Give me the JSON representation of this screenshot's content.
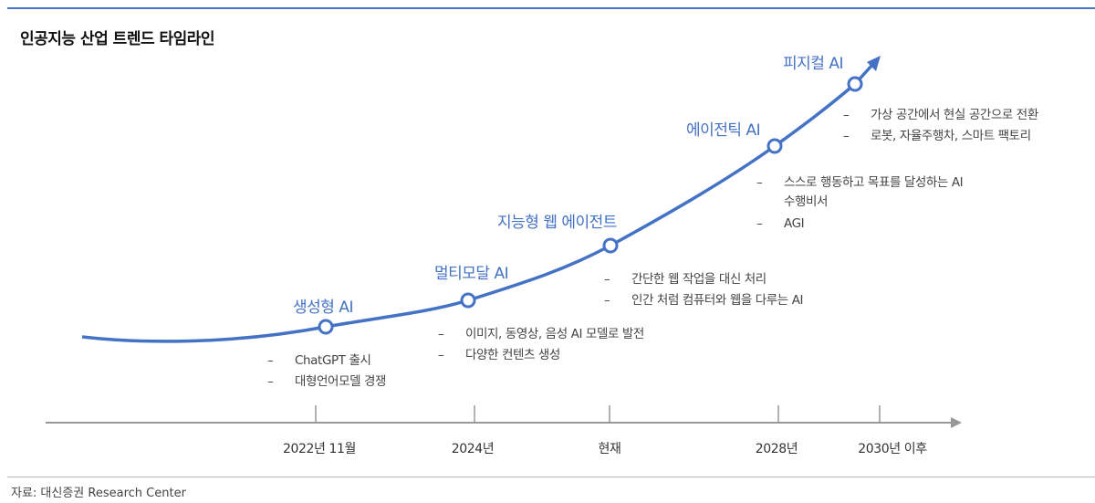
{
  "title": "인공지능 산업 트렌드 타임라인",
  "colors": {
    "accent": "#4472c4",
    "axis": "#999999"
  },
  "stages": [
    {
      "label": "생성형 AI",
      "bullets": [
        "ChatGPT 출시",
        "대형언어모델 경쟁"
      ]
    },
    {
      "label": "멀티모달 AI",
      "bullets": [
        "이미지, 동영상, 음성 AI 모델로 발전",
        "다양한 컨텐츠 생성"
      ]
    },
    {
      "label": "지능형 웹 에이전트",
      "bullets": [
        "간단한 웹 작업을 대신 처리",
        "인간 처럼 컴퓨터와 웹을 다루는 AI"
      ]
    },
    {
      "label": "에이전틱 AI",
      "bullets": [
        "스스로 행동하고 목표를 달성하는 AI 수행비서",
        "AGI"
      ]
    },
    {
      "label": "피지컬 AI",
      "bullets": [
        "가상 공간에서 현실 공간으로 전환",
        "로봇, 자율주행차, 스마트 팩토리"
      ]
    }
  ],
  "timeline": [
    "2022년 11월",
    "2024년",
    "현재",
    "2028년",
    "2030년 이후"
  ],
  "source": "자료: 대신증권 Research Center"
}
